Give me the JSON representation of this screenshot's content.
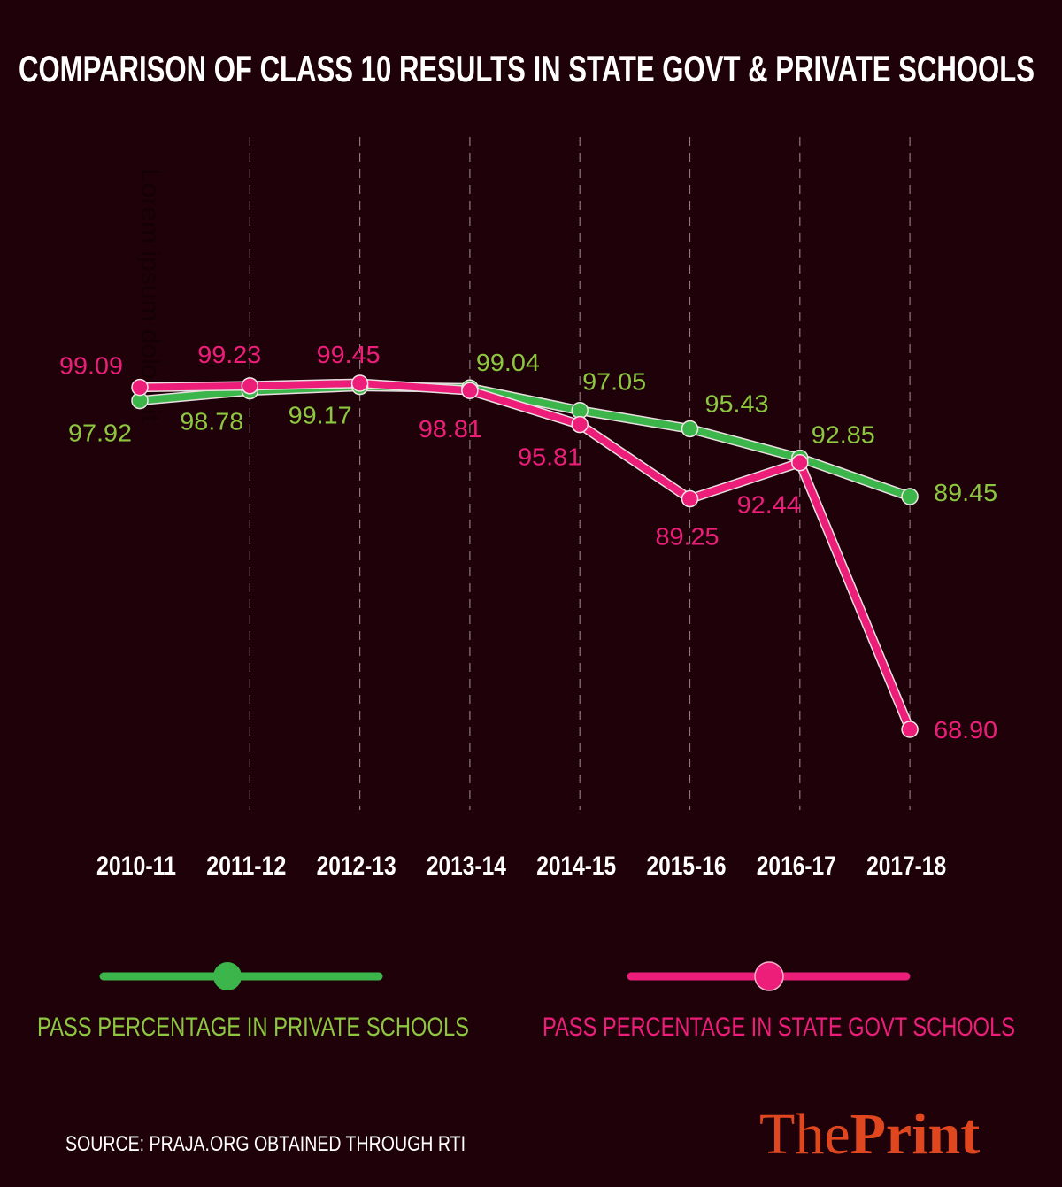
{
  "chart_data": {
    "type": "line",
    "title": "COMPARISON OF CLASS 10 RESULTS IN STATE GOVT & PRIVATE SCHOOLS",
    "ylabel": "Lorem ipsum dolor sit",
    "xlabel": "",
    "categories": [
      "2010-11",
      "2011-12",
      "2012-13",
      "2013-14",
      "2014-15",
      "2015-16",
      "2016-17",
      "2017-18"
    ],
    "series": [
      {
        "name": "PASS PERCENTAGE IN PRIVATE SCHOOLS",
        "color": "#3cb54a",
        "label_color": "#8dc63f",
        "values": [
          97.92,
          98.78,
          99.17,
          99.04,
          97.05,
          95.43,
          92.85,
          89.45
        ],
        "labels": [
          "97.92",
          "98.78",
          "99.17",
          "99.04",
          "97.05",
          "95.43",
          "92.85",
          "89.45"
        ]
      },
      {
        "name": "PASS PERCENTAGE IN STATE GOVT SCHOOLS",
        "color": "#ec1e79",
        "label_color": "#ec1e79",
        "values": [
          99.09,
          99.23,
          99.45,
          98.81,
          95.81,
          89.25,
          92.44,
          68.9
        ],
        "labels": [
          "99.09",
          "99.23",
          "99.45",
          "98.81",
          "95.81",
          "89.25",
          "92.44",
          "68.90"
        ]
      }
    ],
    "grid": "vertical dashed",
    "legend_position": "bottom"
  },
  "source": "SOURCE: PRAJA.ORG OBTAINED THROUGH RTI",
  "logo": {
    "part1": "The",
    "part2": "Print",
    "color": "#e0471f"
  },
  "background": "#1f0209"
}
